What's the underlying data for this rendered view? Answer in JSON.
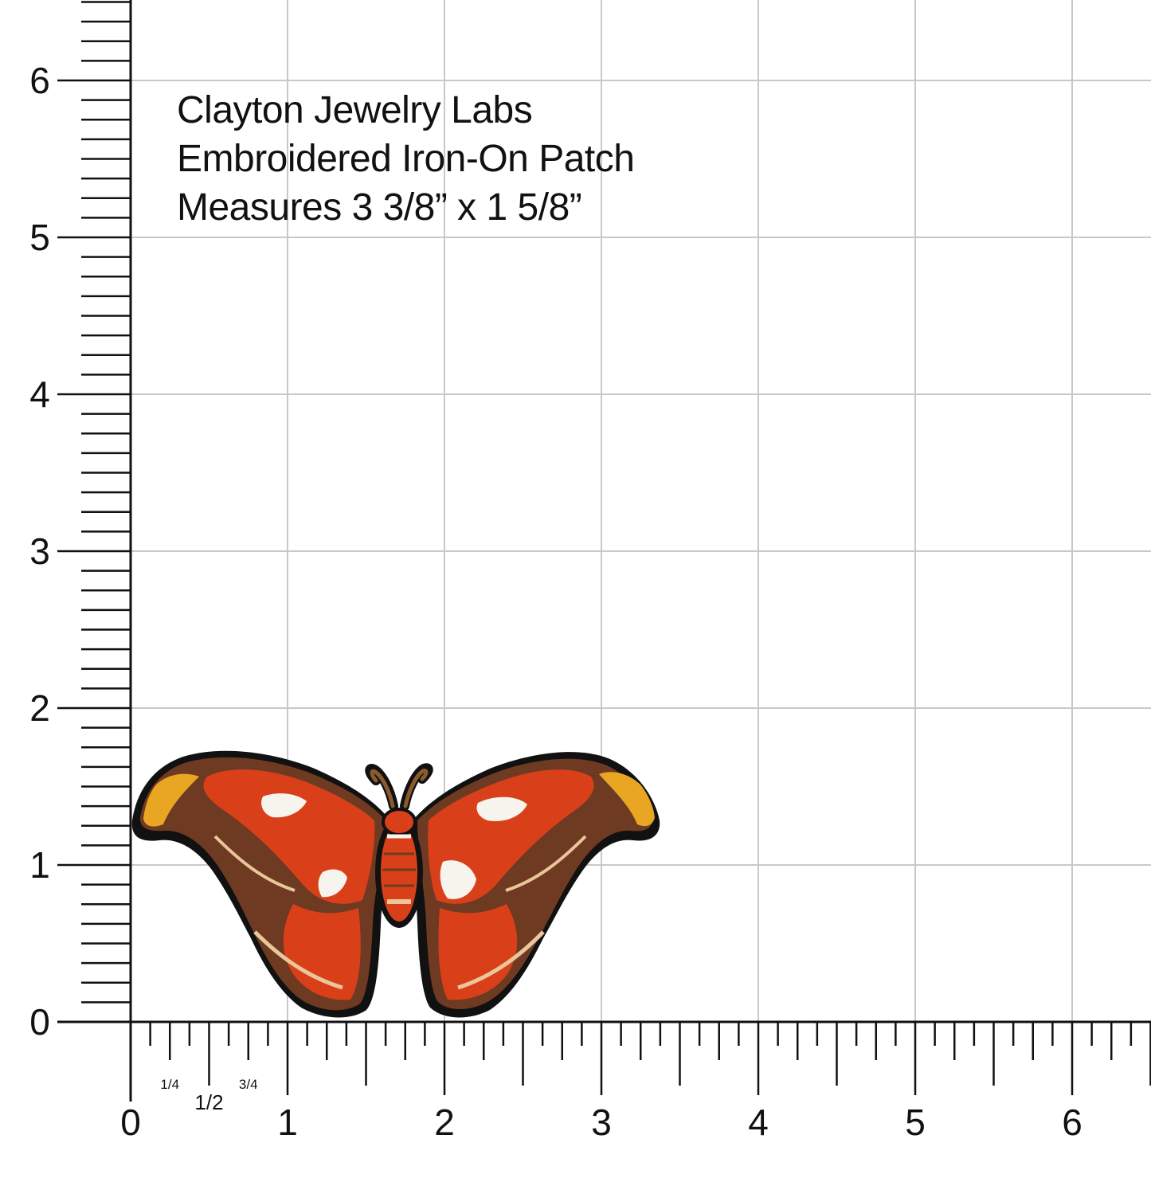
{
  "caption": {
    "line1": "Clayton Jewelry Labs",
    "line2": "Embroidered Iron-On Patch",
    "line3": "Measures 3 3/8” x 1 5/8”"
  },
  "ruler": {
    "y_labels": [
      "0",
      "1",
      "2",
      "3",
      "4",
      "5",
      "6"
    ],
    "x_labels": [
      "0",
      "1",
      "2",
      "3",
      "4",
      "5",
      "6"
    ],
    "fraction_labels": [
      "1/4",
      "1/2",
      "3/4"
    ]
  },
  "colors": {
    "grid": "#c8c8c8",
    "ruler": "#111111",
    "wing_red": "#d9401a",
    "wing_brown": "#6e3a22",
    "wing_tan": "#e9c79a",
    "wing_yellow": "#e8a622",
    "outline": "#111111",
    "spot_white": "#f7f4ee"
  },
  "patch": {
    "subject": "atlas-moth"
  }
}
